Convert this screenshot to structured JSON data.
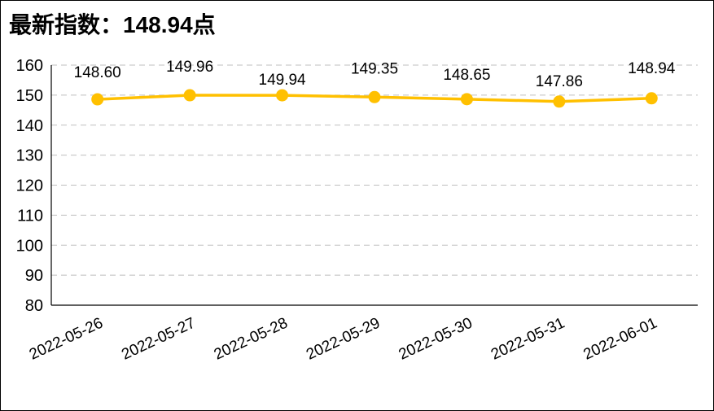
{
  "header": {
    "title": "最新指数：148.94点"
  },
  "chart_data": {
    "type": "line",
    "title": "最新指数：148.94点",
    "categories": [
      "2022-05-26",
      "2022-05-27",
      "2022-05-28",
      "2022-05-29",
      "2022-05-30",
      "2022-05-31",
      "2022-06-01"
    ],
    "values": [
      148.6,
      149.96,
      149.94,
      149.35,
      148.65,
      147.86,
      148.94
    ],
    "point_labels": [
      "148.60",
      "149.96",
      "149.94",
      "149.35",
      "148.65",
      "147.86",
      "148.94"
    ],
    "xlabel": "",
    "ylabel": "",
    "ylim": [
      80,
      160
    ],
    "ytick_step": 10,
    "ytick_labels": [
      "80",
      "90",
      "100",
      "110",
      "120",
      "130",
      "140",
      "150",
      "160"
    ],
    "grid": "horizontal-dashed",
    "legend": "none",
    "line_color": "#FFC000",
    "marker_color": "#FFC000",
    "grid_color": "#BFBFBF",
    "axis_color": "#000000",
    "label_dy": [
      -27,
      -29,
      -13,
      -29,
      -24,
      -19,
      -31
    ],
    "x_label_angle": -25
  }
}
